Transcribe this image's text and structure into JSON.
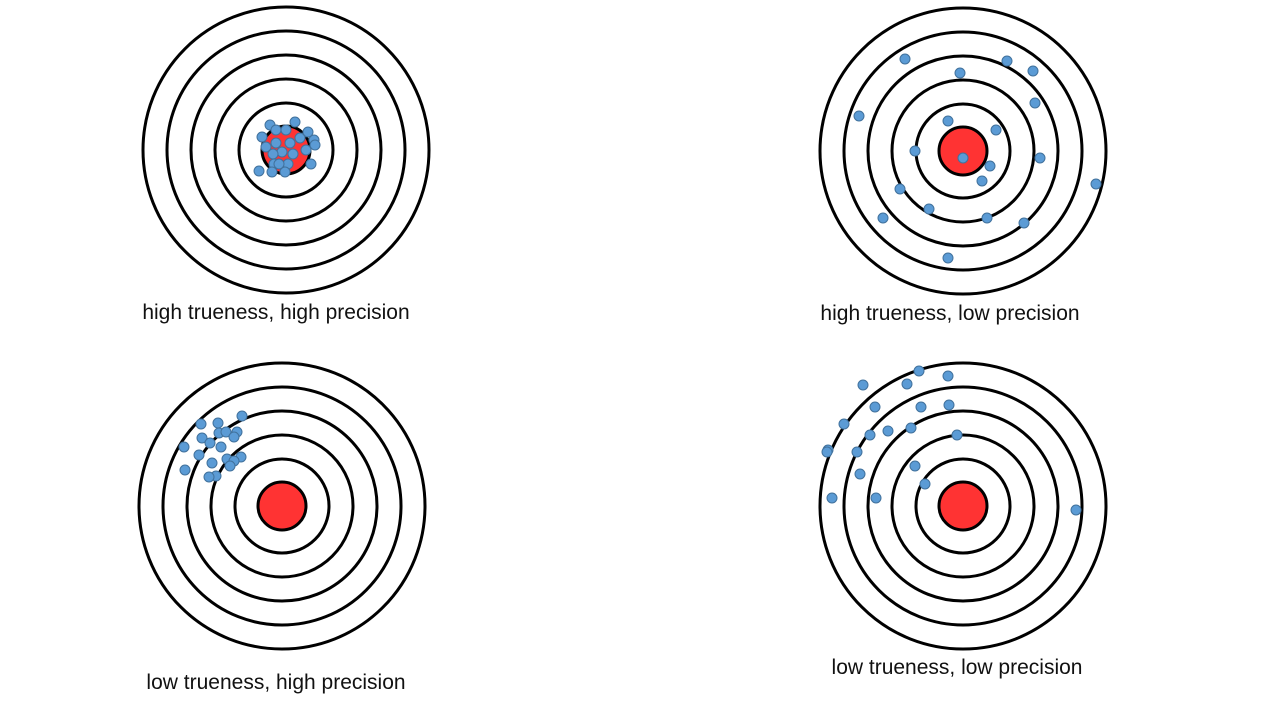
{
  "colors": {
    "ring": "#000000",
    "bullseye": "#ff3333",
    "shot_fill": "#5b9bd5",
    "shot_stroke": "#41719c"
  },
  "targets": [
    {
      "caption": "high trueness, high precision",
      "shots": [
        [
          -16,
          -25
        ],
        [
          0,
          -20
        ],
        [
          9,
          -28
        ],
        [
          14,
          -12
        ],
        [
          28,
          -10
        ],
        [
          4,
          -7
        ],
        [
          -10,
          -7
        ],
        [
          -4,
          2
        ],
        [
          7,
          4
        ],
        [
          20,
          0
        ],
        [
          25,
          14
        ],
        [
          2,
          14
        ],
        [
          -12,
          14
        ],
        [
          -27,
          21
        ],
        [
          -14,
          22
        ],
        [
          -1,
          22
        ],
        [
          -10,
          -20
        ],
        [
          -24,
          -13
        ],
        [
          -20,
          -3
        ],
        [
          -13,
          4
        ],
        [
          -7,
          14
        ],
        [
          22,
          -18
        ],
        [
          29,
          -5
        ]
      ]
    },
    {
      "caption": "high trueness, low precision",
      "shots": [
        [
          -58,
          -92
        ],
        [
          -3,
          -78
        ],
        [
          44,
          -90
        ],
        [
          70,
          -80
        ],
        [
          72,
          -48
        ],
        [
          -104,
          -35
        ],
        [
          -15,
          -30
        ],
        [
          33,
          -21
        ],
        [
          -48,
          0
        ],
        [
          0,
          7
        ],
        [
          27,
          15
        ],
        [
          77,
          7
        ],
        [
          19,
          30
        ],
        [
          -63,
          38
        ],
        [
          133,
          33
        ],
        [
          -34,
          58
        ],
        [
          -80,
          67
        ],
        [
          24,
          67
        ],
        [
          61,
          72
        ],
        [
          -15,
          107
        ]
      ]
    },
    {
      "caption": "low trueness, high precision",
      "shots": [
        [
          -40,
          -90
        ],
        [
          -81,
          -82
        ],
        [
          -64,
          -83
        ],
        [
          -63,
          -73
        ],
        [
          -56,
          -74
        ],
        [
          -45,
          -74
        ],
        [
          -48,
          -69
        ],
        [
          -80,
          -68
        ],
        [
          -72,
          -63
        ],
        [
          -98,
          -59
        ],
        [
          -61,
          -59
        ],
        [
          -83,
          -51
        ],
        [
          -41,
          -49
        ],
        [
          -55,
          -47
        ],
        [
          -70,
          -43
        ],
        [
          -48,
          -45
        ],
        [
          -97,
          -36
        ],
        [
          -52,
          -40
        ],
        [
          -66,
          -30
        ],
        [
          -73,
          -29
        ]
      ]
    },
    {
      "caption": "low trueness, low precision",
      "shots": [
        [
          -44,
          -135
        ],
        [
          -100,
          -121
        ],
        [
          -56,
          -122
        ],
        [
          -15,
          -130
        ],
        [
          -88,
          -99
        ],
        [
          -42,
          -99
        ],
        [
          -14,
          -101
        ],
        [
          -119,
          -82
        ],
        [
          -93,
          -71
        ],
        [
          -75,
          -75
        ],
        [
          -52,
          -78
        ],
        [
          -6,
          -71
        ],
        [
          -135,
          -56
        ],
        [
          -106,
          -54
        ],
        [
          -48,
          -40
        ],
        [
          -103,
          -32
        ],
        [
          -38,
          -22
        ],
        [
          -131,
          -8
        ],
        [
          -87,
          -8
        ],
        [
          113,
          4
        ],
        [
          -136,
          -54
        ]
      ]
    }
  ]
}
